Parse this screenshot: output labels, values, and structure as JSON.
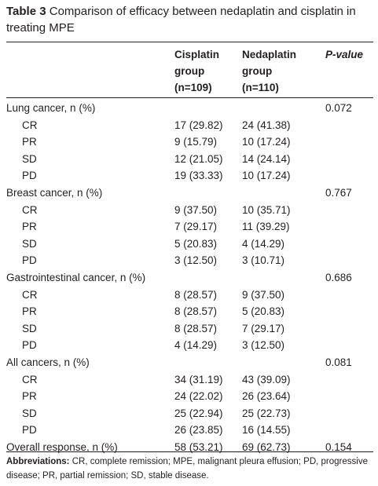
{
  "caption": {
    "label": "Table 3",
    "text": " Comparison of efficacy between nedaplatin and cisplatin in treating MPE"
  },
  "header": {
    "col1": [
      "Cisplatin",
      "group",
      "(n=109)"
    ],
    "col2": [
      "Nedaplatin",
      "group",
      "(n=110)"
    ],
    "col3": "P-value"
  },
  "rows": [
    {
      "label": "Lung cancer, n (%)",
      "c1": "",
      "c2": "",
      "p": "0.072",
      "sub": false
    },
    {
      "label": "CR",
      "c1": "17 (29.82)",
      "c2": "24 (41.38)",
      "p": "",
      "sub": true
    },
    {
      "label": "PR",
      "c1": "9 (15.79)",
      "c2": "10 (17.24)",
      "p": "",
      "sub": true
    },
    {
      "label": "SD",
      "c1": "12 (21.05)",
      "c2": "14 (24.14)",
      "p": "",
      "sub": true
    },
    {
      "label": "PD",
      "c1": "19 (33.33)",
      "c2": "10 (17.24)",
      "p": "",
      "sub": true
    },
    {
      "label": "Breast cancer, n (%)",
      "c1": "",
      "c2": "",
      "p": "0.767",
      "sub": false
    },
    {
      "label": "CR",
      "c1": "9 (37.50)",
      "c2": "10 (35.71)",
      "p": "",
      "sub": true
    },
    {
      "label": "PR",
      "c1": "7 (29.17)",
      "c2": "11 (39.29)",
      "p": "",
      "sub": true
    },
    {
      "label": "SD",
      "c1": "5 (20.83)",
      "c2": "4 (14.29)",
      "p": "",
      "sub": true
    },
    {
      "label": "PD",
      "c1": "3 (12.50)",
      "c2": "3 (10.71)",
      "p": "",
      "sub": true
    },
    {
      "label": "Gastrointestinal cancer, n (%)",
      "c1": "",
      "c2": "",
      "p": "0.686",
      "sub": false
    },
    {
      "label": "CR",
      "c1": "8 (28.57)",
      "c2": "9 (37.50)",
      "p": "",
      "sub": true
    },
    {
      "label": "PR",
      "c1": "8 (28.57)",
      "c2": "5 (20.83)",
      "p": "",
      "sub": true
    },
    {
      "label": "SD",
      "c1": "8 (28.57)",
      "c2": "7 (29.17)",
      "p": "",
      "sub": true
    },
    {
      "label": "PD",
      "c1": "4 (14.29)",
      "c2": "3 (12.50)",
      "p": "",
      "sub": true
    },
    {
      "label": "All cancers, n (%)",
      "c1": "",
      "c2": "",
      "p": "0.081",
      "sub": false
    },
    {
      "label": "CR",
      "c1": "34 (31.19)",
      "c2": "43 (39.09)",
      "p": "",
      "sub": true
    },
    {
      "label": "PR",
      "c1": "24 (22.02)",
      "c2": "26 (23.64)",
      "p": "",
      "sub": true
    },
    {
      "label": "SD",
      "c1": "25 (22.94)",
      "c2": "25 (22.73)",
      "p": "",
      "sub": true
    },
    {
      "label": "PD",
      "c1": "26 (23.85)",
      "c2": "16 (14.55)",
      "p": "",
      "sub": true
    },
    {
      "label": "Overall response, n (%)",
      "c1": "58 (53.21)",
      "c2": "69 (62.73)",
      "p": "0.154",
      "sub": false
    }
  ],
  "footnote": {
    "label": "Abbreviations:",
    "text": " CR, complete remission; MPE, malignant pleura effusion; PD, progressive disease; PR, partial remission; SD, stable disease."
  }
}
